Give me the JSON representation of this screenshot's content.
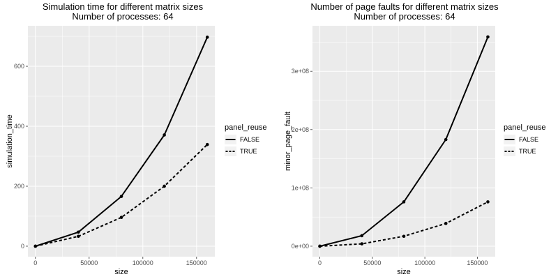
{
  "chart_data": [
    {
      "type": "line",
      "title": [
        "Simulation time for different matrix sizes",
        "Number of processes: 64"
      ],
      "xlabel": "size",
      "ylabel": "simulation_time",
      "xlim": [
        -7000,
        167000
      ],
      "ylim": [
        -35,
        735
      ],
      "xticks": [
        0,
        50000,
        100000,
        150000
      ],
      "xtick_labels": [
        "0",
        "50000",
        "100000",
        "150000"
      ],
      "yticks": [
        0,
        200,
        400,
        600
      ],
      "ytick_labels": [
        "0",
        "200",
        "400",
        "600"
      ],
      "legend_title": "panel_reuse",
      "series": [
        {
          "name": "FALSE",
          "style": "solid",
          "points": [
            [
              0,
              0
            ],
            [
              40000,
              47
            ],
            [
              80000,
              166
            ],
            [
              120000,
              371
            ],
            [
              160000,
              697
            ]
          ]
        },
        {
          "name": "TRUE",
          "style": "dashed",
          "points": [
            [
              0,
              0
            ],
            [
              40000,
              33
            ],
            [
              80000,
              96
            ],
            [
              120000,
              200
            ],
            [
              160000,
              339
            ]
          ]
        }
      ]
    },
    {
      "type": "line",
      "title": [
        "Number of page faults for different matrix sizes",
        "Number of processes: 64"
      ],
      "xlabel": "size",
      "ylabel": "minor_page_fault",
      "xlim": [
        -7000,
        167000
      ],
      "ylim": [
        -18000000,
        378000000
      ],
      "xticks": [
        0,
        50000,
        100000,
        150000
      ],
      "xtick_labels": [
        "0",
        "50000",
        "100000",
        "150000"
      ],
      "yticks": [
        0,
        100000000,
        200000000,
        300000000
      ],
      "ytick_labels": [
        "0e+00",
        "1e+08",
        "2e+08",
        "3e+08"
      ],
      "legend_title": "panel_reuse",
      "series": [
        {
          "name": "FALSE",
          "style": "solid",
          "points": [
            [
              0,
              0
            ],
            [
              40000,
              18000000
            ],
            [
              80000,
              76000000
            ],
            [
              120000,
              183000000
            ],
            [
              160000,
              359000000
            ]
          ]
        },
        {
          "name": "TRUE",
          "style": "dashed",
          "points": [
            [
              0,
              0
            ],
            [
              40000,
              4000000
            ],
            [
              80000,
              17000000
            ],
            [
              120000,
              39000000
            ],
            [
              160000,
              76000000
            ]
          ]
        }
      ]
    }
  ]
}
